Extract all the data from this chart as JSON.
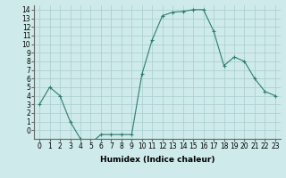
{
  "x": [
    0,
    1,
    2,
    3,
    4,
    5,
    6,
    7,
    8,
    9,
    10,
    11,
    12,
    13,
    14,
    15,
    16,
    17,
    18,
    19,
    20,
    21,
    22,
    23
  ],
  "y": [
    3,
    5,
    4,
    1,
    -1,
    -1.5,
    -0.5,
    -0.5,
    -0.5,
    -0.5,
    6.5,
    10.5,
    13.3,
    13.7,
    13.8,
    14,
    14,
    11.5,
    7.5,
    8.5,
    8,
    6,
    4.5,
    4
  ],
  "line_color": "#2e7d6e",
  "marker": "+",
  "marker_size": 3,
  "marker_lw": 0.8,
  "background_color": "#ceeaea",
  "grid_color": "#a8cccc",
  "xlabel": "Humidex (Indice chaleur)",
  "xlim": [
    -0.5,
    23.5
  ],
  "ylim": [
    -1.0,
    14.5
  ],
  "yticks": [
    0,
    1,
    2,
    3,
    4,
    5,
    6,
    7,
    8,
    9,
    10,
    11,
    12,
    13,
    14
  ],
  "xticks": [
    0,
    1,
    2,
    3,
    4,
    5,
    6,
    7,
    8,
    9,
    10,
    11,
    12,
    13,
    14,
    15,
    16,
    17,
    18,
    19,
    20,
    21,
    22,
    23
  ],
  "tick_fontsize": 5.5,
  "xlabel_fontsize": 6.5
}
